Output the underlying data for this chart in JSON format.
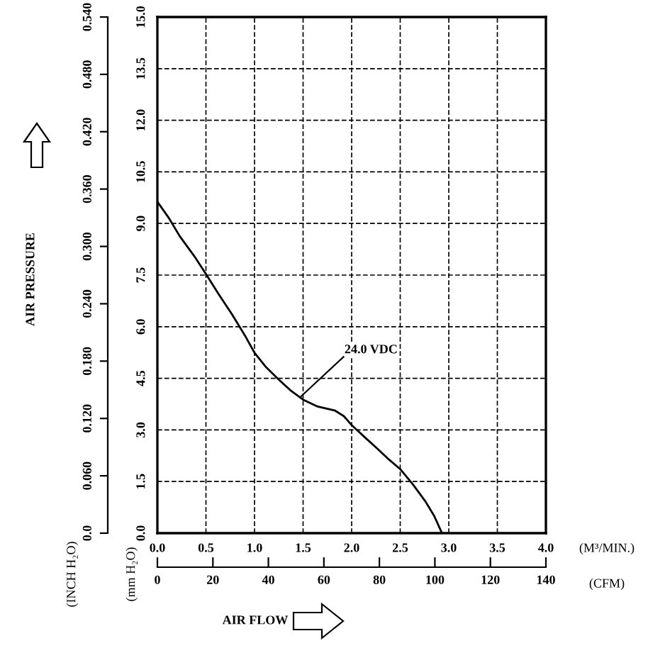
{
  "chart_data": {
    "type": "line",
    "xlabel": "(M³/MIN.)",
    "ylabel": "(mm H₂O)",
    "y2label": "(INCH H₂O)",
    "x2label": "(CFM)",
    "x": [
      0.0,
      0.12,
      0.23,
      0.38,
      0.5,
      0.63,
      0.77,
      0.9,
      1.0,
      1.12,
      1.25,
      1.37,
      1.5,
      1.65,
      1.83,
      1.92,
      2.0,
      2.13,
      2.27,
      2.38,
      2.5,
      2.63,
      2.76,
      2.85,
      2.93
    ],
    "series": [
      {
        "color": "#000000",
        "values": [
          9.63,
          9.15,
          8.63,
          8.05,
          7.53,
          6.95,
          6.35,
          5.75,
          5.24,
          4.82,
          4.46,
          4.15,
          3.88,
          3.68,
          3.56,
          3.4,
          3.14,
          2.8,
          2.44,
          2.15,
          1.86,
          1.42,
          0.92,
          0.5,
          0.0
        ]
      }
    ],
    "xlim": [
      0,
      4.0
    ],
    "xticks": [
      {
        "value": 0,
        "label": "0.0"
      },
      0.5,
      {
        "value": 1,
        "label": "1.0"
      },
      1.5,
      {
        "value": 2,
        "label": "2.0"
      },
      2.5,
      {
        "value": 3,
        "label": "3.0"
      },
      3.5,
      {
        "value": 4,
        "label": "4.0"
      }
    ],
    "ylim": [
      0,
      15.0
    ],
    "yticks": [
      {
        "value": 0,
        "label": "0.0"
      },
      1.5,
      {
        "value": 3,
        "label": "3.0"
      },
      4.5,
      {
        "value": 6,
        "label": "6.0"
      },
      7.5,
      {
        "value": 9,
        "label": "9.0"
      },
      10.5,
      {
        "value": 12,
        "label": "12.0"
      },
      13.5,
      {
        "value": 15,
        "label": "15.0"
      }
    ],
    "y2lim": [
      0,
      0.54
    ],
    "y2ticks": [
      {
        "value": 0,
        "label": "0.0"
      },
      {
        "value": 0.06,
        "label": "0.060"
      },
      {
        "value": 0.12,
        "label": "0.120"
      },
      {
        "value": 0.18,
        "label": "0.180"
      },
      {
        "value": 0.24,
        "label": "0.240"
      },
      {
        "value": 0.3,
        "label": "0.300"
      },
      {
        "value": 0.36,
        "label": "0.360"
      },
      {
        "value": 0.42,
        "label": "0.420"
      },
      {
        "value": 0.48,
        "label": "0.480"
      },
      {
        "value": 0.54,
        "label": "0.540"
      }
    ],
    "x2lim": [
      0,
      140
    ],
    "x2ticks": [
      0,
      20,
      40,
      60,
      80,
      100,
      120,
      140
    ],
    "grid": true,
    "line_style": "solid",
    "marker": "none",
    "annotations": [
      {
        "text": "24.0 VDC",
        "x": 1.47,
        "y": 3.95
      },
      "AIR PRESSURE",
      "AIR FLOW"
    ]
  }
}
